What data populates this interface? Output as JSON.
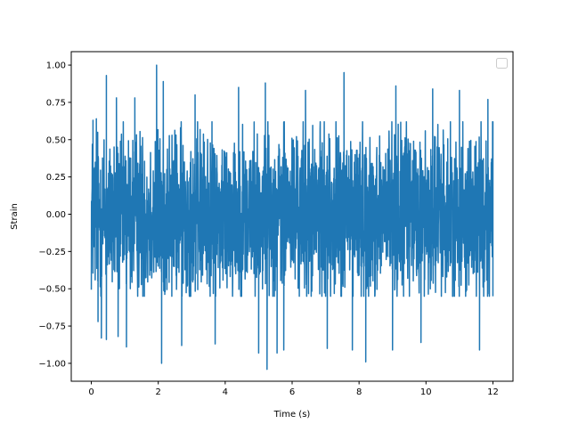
{
  "chart_data": {
    "type": "line",
    "title": "",
    "xlabel": "Time (s)",
    "ylabel": "Strain",
    "xlim": [
      -0.6,
      12.6
    ],
    "ylim": [
      -1.12,
      1.09
    ],
    "xticks": [
      0,
      2,
      4,
      6,
      8,
      10,
      12
    ],
    "xtick_labels": [
      "0",
      "2",
      "4",
      "6",
      "8",
      "10",
      "12"
    ],
    "yticks": [
      -1.0,
      -0.75,
      -0.5,
      -0.25,
      0.0,
      0.25,
      0.5,
      0.75,
      1.0
    ],
    "ytick_labels": [
      "−1.00",
      "−0.75",
      "−0.50",
      "−0.25",
      "0.00",
      "0.25",
      "0.50",
      "0.75",
      "1.00"
    ],
    "grid": false,
    "legend": {
      "position": "top-right",
      "entries": []
    },
    "series": [
      {
        "color": "#1f77b4",
        "x_range": [
          0,
          12
        ],
        "typical_envelope": [
          -0.55,
          0.62
        ],
        "notable_points": [
          {
            "x": 0.05,
            "y": 0.63
          },
          {
            "x": 0.05,
            "y": -0.39
          },
          {
            "x": 0.15,
            "y": 0.64
          },
          {
            "x": 0.2,
            "y": -0.72
          },
          {
            "x": 0.3,
            "y": -0.83
          },
          {
            "x": 0.45,
            "y": 0.93
          },
          {
            "x": 0.45,
            "y": -0.84
          },
          {
            "x": 0.75,
            "y": 0.78
          },
          {
            "x": 0.8,
            "y": -0.82
          },
          {
            "x": 1.05,
            "y": -0.89
          },
          {
            "x": 1.3,
            "y": 0.78
          },
          {
            "x": 1.95,
            "y": 1.0
          },
          {
            "x": 2.1,
            "y": -1.0
          },
          {
            "x": 2.15,
            "y": 0.89
          },
          {
            "x": 2.7,
            "y": -0.88
          },
          {
            "x": 3.1,
            "y": 0.8
          },
          {
            "x": 3.7,
            "y": -0.87
          },
          {
            "x": 4.4,
            "y": 0.85
          },
          {
            "x": 5.0,
            "y": -0.93
          },
          {
            "x": 5.25,
            "y": -1.04
          },
          {
            "x": 5.2,
            "y": 0.88
          },
          {
            "x": 5.55,
            "y": -0.93
          },
          {
            "x": 5.75,
            "y": -0.91
          },
          {
            "x": 6.4,
            "y": 0.83
          },
          {
            "x": 7.05,
            "y": -0.9
          },
          {
            "x": 7.55,
            "y": 0.95
          },
          {
            "x": 7.8,
            "y": -0.91
          },
          {
            "x": 8.2,
            "y": -0.99
          },
          {
            "x": 9.0,
            "y": -0.91
          },
          {
            "x": 9.1,
            "y": 0.86
          },
          {
            "x": 9.85,
            "y": -0.86
          },
          {
            "x": 10.2,
            "y": 0.84
          },
          {
            "x": 11.0,
            "y": 0.83
          },
          {
            "x": 11.6,
            "y": -0.91
          },
          {
            "x": 11.85,
            "y": 0.77
          },
          {
            "x": 12.0,
            "y": 0.62
          },
          {
            "x": 12.0,
            "y": -0.55
          }
        ]
      }
    ]
  }
}
